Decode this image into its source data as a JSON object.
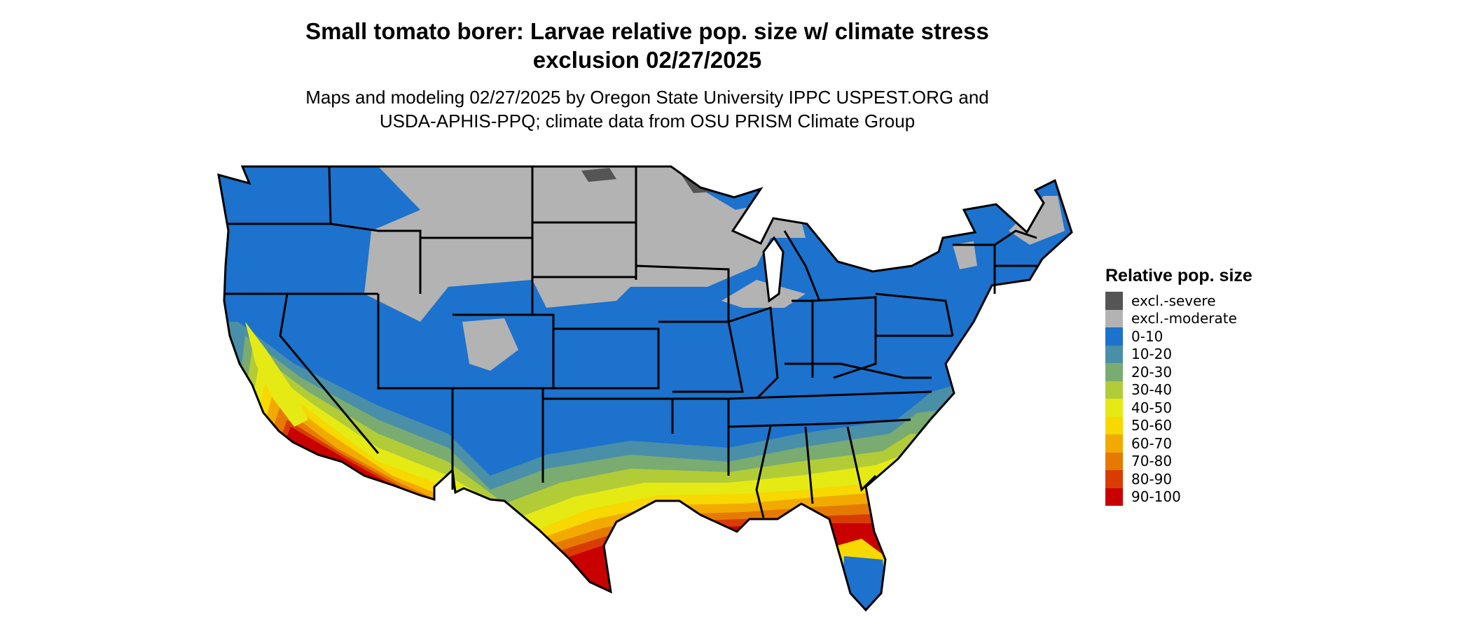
{
  "title_line1": "Small tomato borer: Larvae relative pop. size w/ climate stress",
  "title_line2": "exclusion 02/27/2025",
  "subtitle_line1": "Maps and modeling 02/27/2025 by Oregon State University IPPC USPEST.ORG and",
  "subtitle_line2": "USDA-APHIS-PPQ; climate data from OSU PRISM Climate Group",
  "legend": {
    "title": "Relative pop. size",
    "items": [
      {
        "label": "excl.-severe",
        "color": "#555555"
      },
      {
        "label": "excl.-moderate",
        "color": "#b3b3b3"
      },
      {
        "label": "0-10",
        "color": "#1c72cc"
      },
      {
        "label": "10-20",
        "color": "#4a8fa8"
      },
      {
        "label": "20-30",
        "color": "#7aab70"
      },
      {
        "label": "30-40",
        "color": "#b2cc38"
      },
      {
        "label": "40-50",
        "color": "#e6ea14"
      },
      {
        "label": "50-60",
        "color": "#f7d800"
      },
      {
        "label": "60-70",
        "color": "#f2aa00"
      },
      {
        "label": "70-80",
        "color": "#e67a00"
      },
      {
        "label": "80-90",
        "color": "#d93c00"
      },
      {
        "label": "90-100",
        "color": "#c80000"
      }
    ]
  }
}
